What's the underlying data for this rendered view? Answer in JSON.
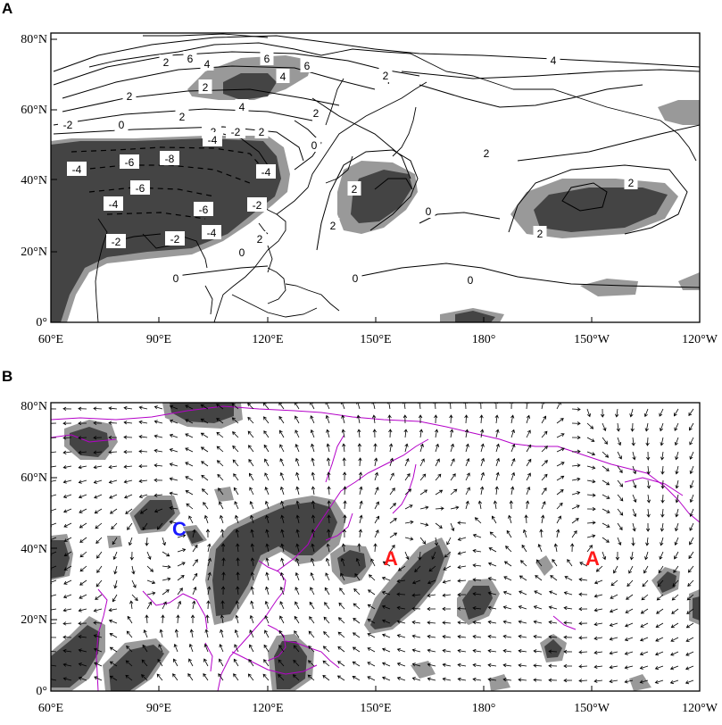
{
  "panel_a": {
    "letter": "A",
    "lat_ticks": [
      "80°N",
      "60°N",
      "40°N",
      "20°N",
      "0°"
    ],
    "lon_ticks": [
      "60°E",
      "90°E",
      "120°E",
      "150°E",
      "180°",
      "150°W",
      "120°W"
    ],
    "contour_labels": [
      "6",
      "4",
      "2",
      "6",
      "6",
      "4",
      "4",
      "2",
      "2",
      "4",
      "4",
      "2",
      "2",
      "-2",
      "0",
      "2",
      "-2",
      "-2",
      "2",
      "-4",
      "0",
      "2",
      "-4",
      "-6",
      "-8",
      "-4",
      "-6",
      "-4",
      "-6",
      "-2",
      "-4",
      "-2",
      "-2",
      "0",
      "2",
      "0",
      "2",
      "0",
      "2",
      "0",
      "2",
      "2",
      "0"
    ]
  },
  "panel_b": {
    "letter": "B",
    "lat_ticks": [
      "80°N",
      "60°N",
      "40°N",
      "20°N",
      "0°"
    ],
    "lon_ticks": [
      "60°E",
      "90°E",
      "120°E",
      "150°E",
      "180°",
      "150°W",
      "120°W"
    ],
    "markers": [
      {
        "label": "C",
        "color": "#1a1aff"
      },
      {
        "label": "A",
        "color": "#ff1a1a"
      },
      {
        "label": "A",
        "color": "#ff1a1a"
      }
    ]
  },
  "colors": {
    "dark_shade": "#444444",
    "light_shade": "#999999",
    "coastline_a": "#000000",
    "coastline_b": "#b400c8"
  }
}
